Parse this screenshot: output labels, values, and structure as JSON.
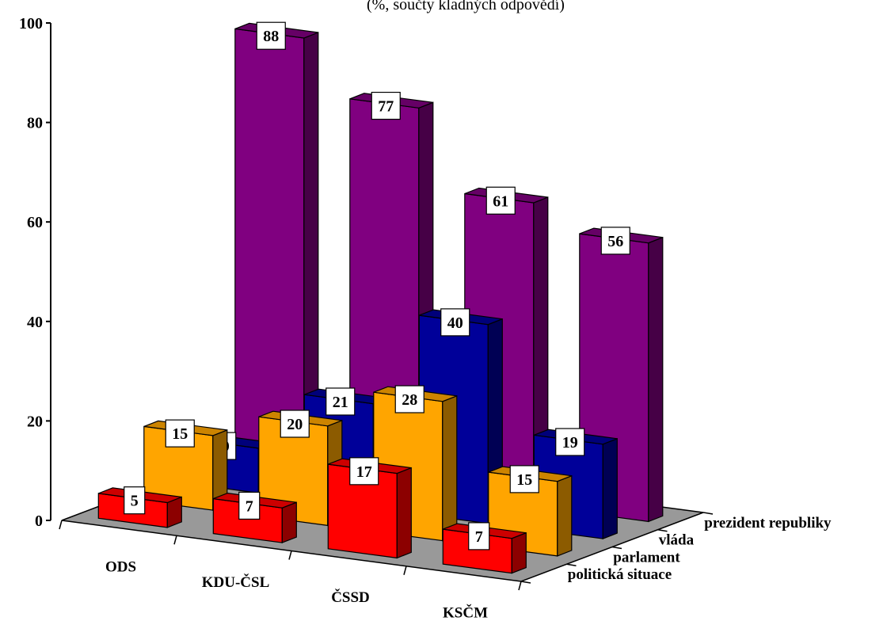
{
  "chart_data": {
    "type": "bar",
    "subtitle": "(%, součty kladných odpovědí)",
    "categories": [
      "ODS",
      "KDU-ČSL",
      "ČSSD",
      "KSČM"
    ],
    "series": [
      {
        "name": "politická situace",
        "values": [
          5,
          7,
          17,
          7
        ]
      },
      {
        "name": "parlament",
        "values": [
          15,
          20,
          28,
          15
        ]
      },
      {
        "name": "vláda",
        "values": [
          9,
          21,
          40,
          19
        ]
      },
      {
        "name": "prezident republiky",
        "values": [
          88,
          77,
          61,
          56
        ]
      }
    ],
    "ylim": [
      0,
      100
    ],
    "yticks": [
      0,
      20,
      40,
      60,
      80,
      100
    ],
    "colors": {
      "politická situace": "#ff0000",
      "parlament": "#ffa500",
      "vláda": "#000099",
      "prezident republiky": "#800080",
      "floor": "#999999"
    }
  }
}
